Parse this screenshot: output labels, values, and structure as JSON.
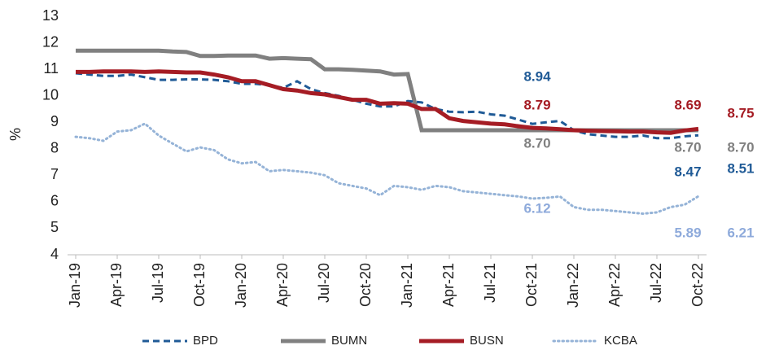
{
  "chart_data": {
    "type": "line",
    "y_label": "%",
    "categories": [
      "Jan-19",
      null,
      null,
      "Apr-19",
      null,
      null,
      "Jul-19",
      null,
      null,
      "Oct-19",
      null,
      null,
      "Jan-20",
      null,
      null,
      "Apr-20",
      null,
      null,
      "Jul-20",
      null,
      null,
      "Oct-20",
      null,
      null,
      "Jan-21",
      null,
      null,
      "Apr-21",
      null,
      null,
      "Jul-21",
      null,
      null,
      "Oct-21",
      null,
      null,
      "Jan-22",
      null,
      null,
      "Apr-22",
      null,
      null,
      "Jul-22",
      null,
      null,
      "Oct-22"
    ],
    "ylim": [
      4,
      13
    ],
    "yticks": [
      4,
      5,
      6,
      7,
      8,
      9,
      10,
      11,
      12,
      13
    ],
    "grid": false,
    "legend": "bottom",
    "series": [
      {
        "name": "BPD",
        "color": "#1f5a96",
        "line_style": "dashed",
        "values": [
          10.85,
          10.8,
          10.75,
          10.75,
          10.8,
          10.7,
          10.6,
          10.6,
          10.62,
          10.62,
          10.6,
          10.55,
          10.45,
          10.45,
          10.4,
          10.3,
          10.55,
          10.25,
          10.1,
          10.0,
          9.85,
          9.7,
          9.6,
          9.6,
          9.8,
          9.75,
          9.5,
          9.4,
          9.38,
          9.4,
          9.3,
          9.25,
          9.1,
          8.94,
          9.0,
          9.05,
          8.7,
          8.55,
          8.5,
          8.45,
          8.45,
          8.5,
          8.4,
          8.4,
          8.47,
          8.51
        ],
        "value_labels": [
          null,
          null,
          null,
          null,
          null,
          null,
          null,
          null,
          null,
          null,
          null,
          null,
          null,
          null,
          null,
          null,
          null,
          null,
          null,
          null,
          null,
          null,
          null,
          null,
          null,
          null,
          null,
          null,
          null,
          null,
          null,
          null,
          null,
          "8.94",
          null,
          null,
          null,
          null,
          null,
          null,
          null,
          null,
          null,
          null,
          "8.47",
          "8.51"
        ]
      },
      {
        "name": "BUMN",
        "color": "#808080",
        "line_style": "solid",
        "values": [
          11.7,
          11.7,
          11.7,
          11.7,
          11.7,
          11.7,
          11.7,
          11.67,
          11.65,
          11.5,
          11.5,
          11.52,
          11.52,
          11.52,
          11.4,
          11.42,
          11.4,
          11.38,
          11.0,
          11.0,
          10.98,
          10.95,
          10.92,
          10.8,
          10.82,
          8.7,
          8.7,
          8.7,
          8.7,
          8.7,
          8.7,
          8.7,
          8.7,
          8.7,
          8.7,
          8.7,
          8.7,
          8.7,
          8.7,
          8.7,
          8.7,
          8.7,
          8.7,
          8.7,
          8.7,
          8.7
        ],
        "value_labels": [
          null,
          null,
          null,
          null,
          null,
          null,
          null,
          null,
          null,
          null,
          null,
          null,
          null,
          null,
          null,
          null,
          null,
          null,
          null,
          null,
          null,
          null,
          null,
          null,
          null,
          null,
          null,
          null,
          null,
          null,
          null,
          null,
          null,
          "8.70",
          null,
          null,
          null,
          null,
          null,
          null,
          null,
          null,
          null,
          null,
          "8.70",
          "8.70"
        ]
      },
      {
        "name": "BUSN",
        "color": "#a51c24",
        "line_style": "solid",
        "values": [
          10.9,
          10.9,
          10.92,
          10.92,
          10.92,
          10.9,
          10.92,
          10.9,
          10.88,
          10.88,
          10.8,
          10.7,
          10.55,
          10.55,
          10.4,
          10.25,
          10.2,
          10.1,
          10.05,
          9.95,
          9.85,
          9.85,
          9.7,
          9.72,
          9.7,
          9.5,
          9.5,
          9.15,
          9.05,
          9.0,
          8.95,
          8.92,
          8.85,
          8.79,
          8.77,
          8.74,
          8.7,
          8.68,
          8.67,
          8.66,
          8.65,
          8.65,
          8.62,
          8.6,
          8.69,
          8.75
        ],
        "value_labels": [
          null,
          null,
          null,
          null,
          null,
          null,
          null,
          null,
          null,
          null,
          null,
          null,
          null,
          null,
          null,
          null,
          null,
          null,
          null,
          null,
          null,
          null,
          null,
          null,
          null,
          null,
          null,
          null,
          null,
          null,
          null,
          null,
          null,
          "8.79",
          null,
          null,
          null,
          null,
          null,
          null,
          null,
          null,
          null,
          null,
          "8.69",
          "8.75"
        ]
      },
      {
        "name": "KCBA",
        "color": "#95b3d7",
        "line_style": "dotted",
        "values": [
          8.45,
          8.4,
          8.3,
          8.65,
          8.7,
          8.95,
          8.5,
          8.2,
          7.9,
          8.05,
          7.95,
          7.6,
          7.45,
          7.5,
          7.15,
          7.2,
          7.15,
          7.1,
          7.0,
          6.7,
          6.6,
          6.5,
          6.25,
          6.6,
          6.55,
          6.45,
          6.6,
          6.55,
          6.4,
          6.35,
          6.3,
          6.25,
          6.2,
          6.12,
          6.15,
          6.2,
          5.8,
          5.7,
          5.7,
          5.65,
          5.6,
          5.55,
          5.6,
          5.8,
          5.89,
          6.21
        ],
        "value_labels": [
          null,
          null,
          null,
          null,
          null,
          null,
          null,
          null,
          null,
          null,
          null,
          null,
          null,
          null,
          null,
          null,
          null,
          null,
          null,
          null,
          null,
          null,
          null,
          null,
          null,
          null,
          null,
          null,
          null,
          null,
          null,
          null,
          null,
          "6.12",
          null,
          null,
          null,
          null,
          null,
          null,
          null,
          null,
          null,
          null,
          "5.89",
          "6.21"
        ]
      }
    ]
  }
}
